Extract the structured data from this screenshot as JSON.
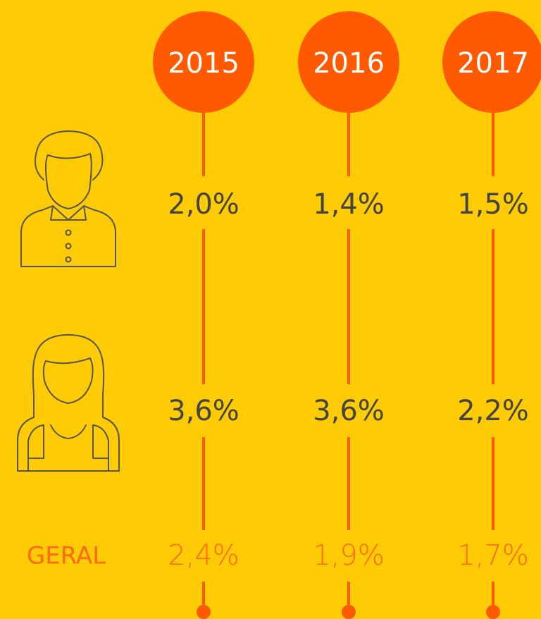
{
  "years": [
    "2015",
    "2016",
    "2017"
  ],
  "rows": [
    {
      "values": [
        "2,0%",
        "1,4%",
        "1,5%"
      ]
    },
    {
      "values": [
        "3,6%",
        "3,6%",
        "2,2%"
      ]
    },
    {
      "label": "GERAL",
      "values": [
        "2,4%",
        "1,9%",
        "1,7%"
      ]
    }
  ]
}
